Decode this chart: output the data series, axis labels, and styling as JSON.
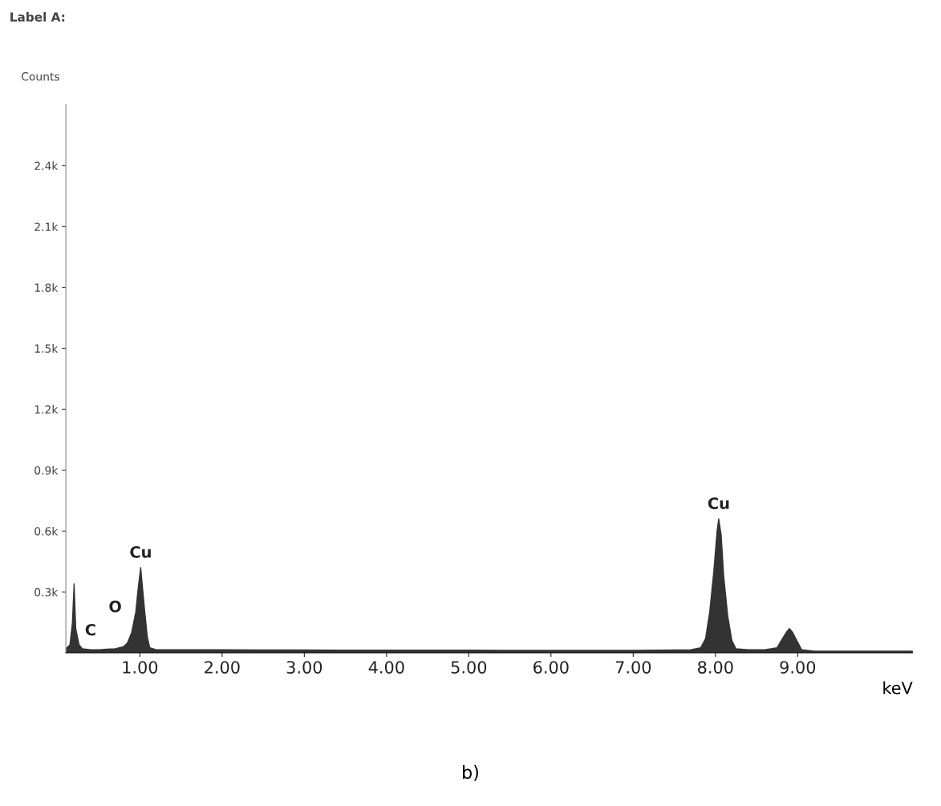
{
  "chart_data": {
    "type": "area",
    "title": "Label A:",
    "xlabel": "keV",
    "ylabel": "Counts",
    "x": [
      0.1,
      0.15,
      0.18,
      0.2,
      0.22,
      0.26,
      0.3,
      0.4,
      0.5,
      0.6,
      0.7,
      0.8,
      0.85,
      0.9,
      0.95,
      0.98,
      1.01,
      1.03,
      1.06,
      1.09,
      1.12,
      1.2,
      1.5,
      2.0,
      2.5,
      3.0,
      3.5,
      4.0,
      4.5,
      5.0,
      5.5,
      6.0,
      6.5,
      7.0,
      7.5,
      7.7,
      7.82,
      7.88,
      7.93,
      7.98,
      8.02,
      8.04,
      8.07,
      8.1,
      8.15,
      8.2,
      8.25,
      8.4,
      8.6,
      8.75,
      8.8,
      8.86,
      8.9,
      8.94,
      8.99,
      9.05,
      9.2,
      9.6,
      10.0,
      10.4
    ],
    "series": [
      {
        "color": "#333333",
        "values": [
          20,
          40,
          150,
          340,
          120,
          40,
          20,
          15,
          15,
          18,
          20,
          30,
          50,
          100,
          200,
          320,
          420,
          330,
          200,
          80,
          25,
          15,
          15,
          15,
          14,
          14,
          13,
          13,
          13,
          13,
          12,
          12,
          12,
          12,
          14,
          15,
          25,
          70,
          200,
          400,
          600,
          660,
          580,
          380,
          180,
          60,
          20,
          15,
          15,
          25,
          60,
          100,
          120,
          100,
          60,
          15,
          8,
          8,
          8,
          8
        ]
      }
    ],
    "xlim": [
      0.1,
      10.4
    ],
    "ylim": [
      0,
      2700
    ],
    "xticks": [
      {
        "value": 1,
        "label": "1.00"
      },
      {
        "value": 2,
        "label": "2.00"
      },
      {
        "value": 3,
        "label": "3.00"
      },
      {
        "value": 4,
        "label": "4.00"
      },
      {
        "value": 5,
        "label": "5.00"
      },
      {
        "value": 6,
        "label": "6.00"
      },
      {
        "value": 7,
        "label": "7.00"
      },
      {
        "value": 8,
        "label": "8.00"
      },
      {
        "value": 9,
        "label": "9.00"
      }
    ],
    "yticks": [
      {
        "value": 300,
        "label": "0.3k"
      },
      {
        "value": 600,
        "label": "0.6k"
      },
      {
        "value": 900,
        "label": "0.9k"
      },
      {
        "value": 1200,
        "label": "1.2k"
      },
      {
        "value": 1500,
        "label": "1.5k"
      },
      {
        "value": 1800,
        "label": "1.8k"
      },
      {
        "value": 2100,
        "label": "2.1k"
      },
      {
        "value": 2400,
        "label": "2.4k"
      }
    ],
    "annotations": [
      {
        "text": "C",
        "x": 0.4,
        "y": 15
      },
      {
        "text": "O",
        "x": 0.7,
        "y": 20
      },
      {
        "text": "Cu",
        "x": 1.01,
        "y": 420
      },
      {
        "text": "Cu",
        "x": 8.04,
        "y": 660
      },
      "b)"
    ]
  }
}
